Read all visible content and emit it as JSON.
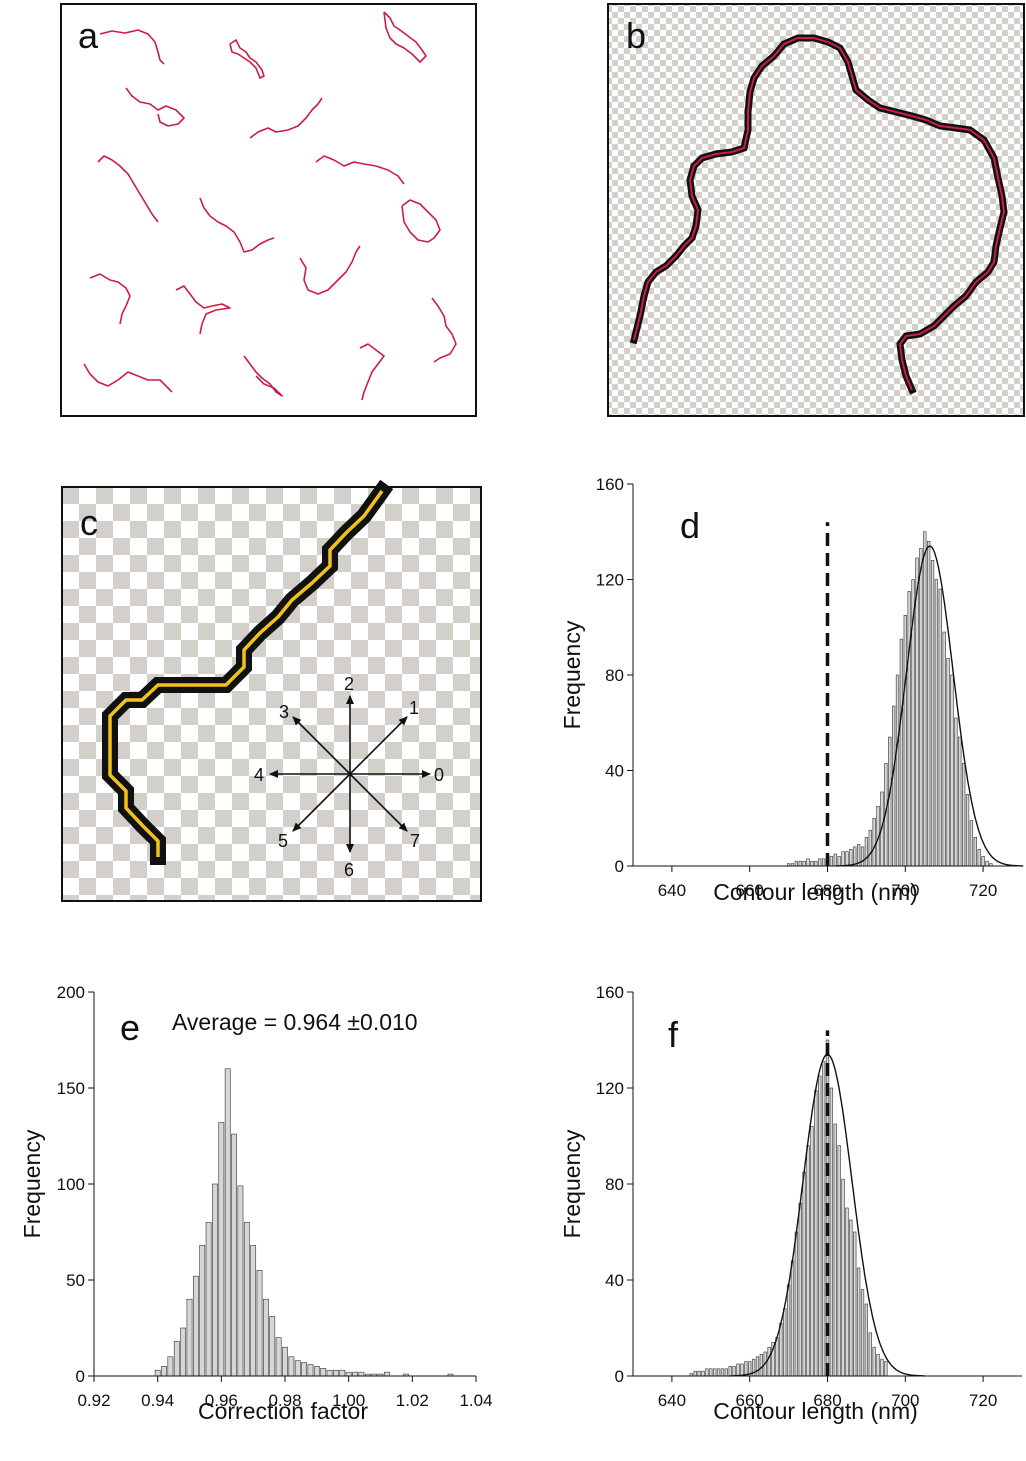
{
  "figure": {
    "panel_labels": [
      "a",
      "b",
      "c",
      "d",
      "e",
      "f"
    ],
    "panel_c_direction_labels": [
      "0",
      "1",
      "2",
      "3",
      "4",
      "5",
      "6",
      "7"
    ],
    "colors": {
      "trace": "#cc1d44",
      "skeleton_pixel": "#111111",
      "checker_gray": "#d3d0cc",
      "chain_code_path": "#f2c21b",
      "bar_fill": "#d6d6d6",
      "bar_edge": "#333333"
    }
  },
  "chart_data": [
    {
      "panel": "d",
      "type": "bar",
      "xlabel": "Contour length (nm)",
      "ylabel": "Frequency",
      "xlim": [
        630,
        730
      ],
      "ylim": [
        0,
        160
      ],
      "xticks": [
        640,
        660,
        680,
        700,
        720
      ],
      "yticks": [
        0,
        40,
        80,
        120,
        160
      ],
      "bin_width": 1,
      "x": [
        640,
        645,
        650,
        655,
        660,
        665,
        670,
        671,
        672,
        673,
        674,
        675,
        676,
        677,
        678,
        679,
        680,
        681,
        682,
        683,
        684,
        685,
        686,
        687,
        688,
        689,
        690,
        691,
        692,
        693,
        694,
        695,
        696,
        697,
        698,
        699,
        700,
        701,
        702,
        703,
        704,
        705,
        706,
        707,
        708,
        709,
        710,
        711,
        712,
        713,
        714,
        715,
        716,
        717,
        718,
        719,
        720,
        721,
        722
      ],
      "values": [
        0,
        0,
        0,
        0,
        0,
        0,
        1,
        1,
        2,
        2,
        2,
        3,
        2,
        2,
        3,
        3,
        3,
        4,
        5,
        4,
        6,
        6,
        7,
        8,
        9,
        8,
        12,
        15,
        20,
        25,
        31,
        43,
        54,
        67,
        80,
        95,
        105,
        115,
        120,
        129,
        133,
        140,
        136,
        128,
        120,
        116,
        98,
        87,
        80,
        62,
        54,
        43,
        30,
        19,
        12,
        7,
        4,
        2,
        1
      ],
      "fit_curve": {
        "type": "gaussian",
        "mean": 706.3,
        "sd": 6.0,
        "peak": 134
      },
      "reference_line": {
        "x": 680,
        "style": "dashed"
      }
    },
    {
      "panel": "e",
      "type": "bar",
      "xlabel": "Correction factor",
      "ylabel": "Frequency",
      "annotation": "Average = 0.964 ±0.010",
      "xlim": [
        0.92,
        1.04
      ],
      "ylim": [
        0,
        200
      ],
      "xticks": [
        "0.92",
        "0.94",
        "0.96",
        "0.98",
        "1.00",
        "1.02",
        "1.04"
      ],
      "yticks": [
        0,
        50,
        100,
        150,
        200
      ],
      "bin_width": 0.002,
      "x": [
        0.94,
        0.942,
        0.944,
        0.946,
        0.948,
        0.95,
        0.952,
        0.954,
        0.956,
        0.958,
        0.96,
        0.962,
        0.964,
        0.966,
        0.968,
        0.97,
        0.972,
        0.974,
        0.976,
        0.978,
        0.98,
        0.982,
        0.984,
        0.986,
        0.988,
        0.99,
        0.992,
        0.994,
        0.996,
        0.998,
        1.0,
        1.002,
        1.004,
        1.006,
        1.008,
        1.01,
        1.012,
        1.014,
        1.016,
        1.018,
        1.02,
        1.022,
        1.024,
        1.026,
        1.028,
        1.03,
        1.032
      ],
      "values": [
        3,
        5,
        10,
        18,
        25,
        40,
        52,
        68,
        80,
        100,
        132,
        160,
        126,
        99,
        80,
        68,
        55,
        40,
        31,
        20,
        15,
        10,
        8,
        7,
        6,
        5,
        4,
        3,
        3,
        3,
        2,
        2,
        2,
        1,
        1,
        1,
        2,
        0,
        0,
        1,
        0,
        0,
        0,
        0,
        0,
        0,
        1
      ]
    },
    {
      "panel": "f",
      "type": "bar",
      "xlabel": "Contour length (nm)",
      "ylabel": "Frequency",
      "xlim": [
        630,
        730
      ],
      "ylim": [
        0,
        160
      ],
      "xticks": [
        640,
        660,
        680,
        700,
        720
      ],
      "yticks": [
        0,
        40,
        80,
        120,
        160
      ],
      "bin_width": 1,
      "x": [
        645,
        646,
        647,
        648,
        649,
        650,
        651,
        652,
        653,
        654,
        655,
        656,
        657,
        658,
        659,
        660,
        661,
        662,
        663,
        664,
        665,
        666,
        667,
        668,
        669,
        670,
        671,
        672,
        673,
        674,
        675,
        676,
        677,
        678,
        679,
        680,
        681,
        682,
        683,
        684,
        685,
        686,
        687,
        688,
        689,
        690,
        691,
        692,
        693,
        694,
        695
      ],
      "values": [
        1,
        2,
        2,
        2,
        3,
        3,
        3,
        3,
        3,
        3,
        4,
        4,
        5,
        5,
        6,
        6,
        7,
        8,
        9,
        10,
        12,
        14,
        16,
        22,
        28,
        38,
        48,
        60,
        72,
        85,
        96,
        104,
        119,
        125,
        131,
        140,
        120,
        105,
        96,
        82,
        70,
        65,
        60,
        45,
        36,
        30,
        18,
        12,
        9,
        7,
        6
      ],
      "fit_curve": {
        "type": "gaussian",
        "mean": 680.0,
        "sd": 6.3,
        "peak": 134
      },
      "reference_line": {
        "x": 680,
        "style": "dashed"
      }
    }
  ]
}
